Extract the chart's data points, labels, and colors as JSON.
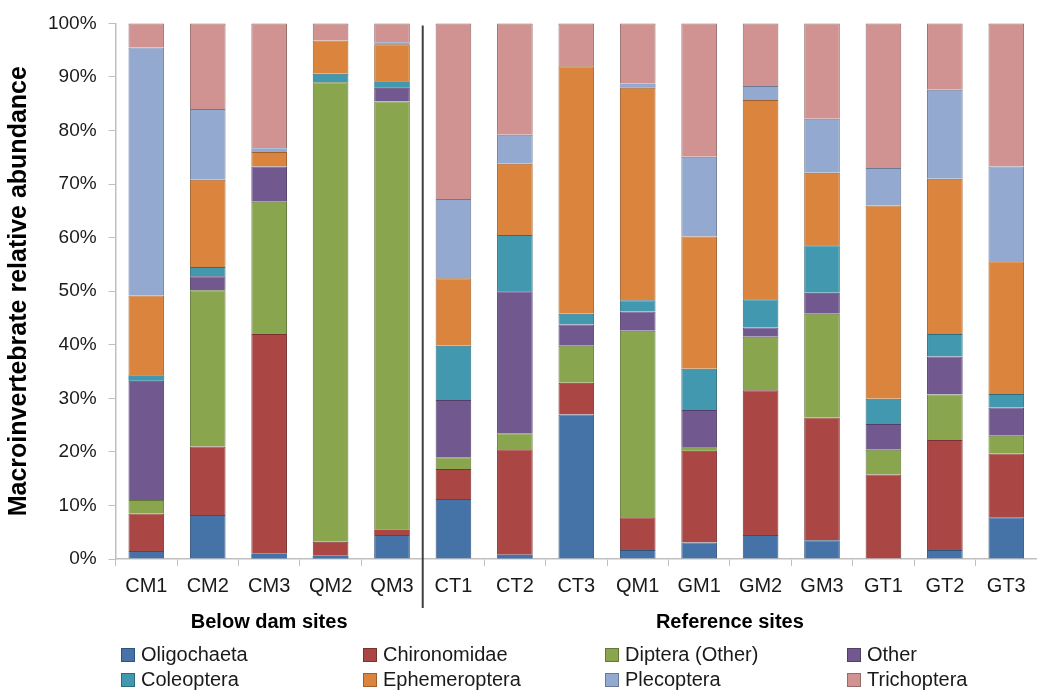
{
  "chart_data": {
    "type": "bar",
    "stacked": true,
    "ylabel": "Macroinvertebrate relative abundance",
    "categories": [
      "CM1",
      "CM2",
      "CM3",
      "QM2",
      "QM3",
      "CT1",
      "CT2",
      "CT3",
      "QM1",
      "GM1",
      "GM2",
      "GM3",
      "GT1",
      "GT2",
      "GT3"
    ],
    "ylim": [
      0,
      100
    ],
    "yticks": [
      {
        "value": 0,
        "label": "0%"
      },
      {
        "value": 10,
        "label": "10%"
      },
      {
        "value": 20,
        "label": "20%"
      },
      {
        "value": 30,
        "label": "30%"
      },
      {
        "value": 40,
        "label": "40%"
      },
      {
        "value": 50,
        "label": "50%"
      },
      {
        "value": 60,
        "label": "60%"
      },
      {
        "value": 70,
        "label": "70%"
      },
      {
        "value": 80,
        "label": "80%"
      },
      {
        "value": 90,
        "label": "90%"
      },
      {
        "value": 100,
        "label": "100%"
      }
    ],
    "grid": false,
    "legend": "bottom",
    "annotations": [
      "Below dam sites",
      "Reference sites"
    ],
    "series": [
      {
        "name": "Oligochaeta",
        "color": "#4572a7",
        "values": [
          1.5,
          8.2,
          1,
          0.6,
          4.5,
          11.2,
          0.8,
          27,
          1.7,
          3.1,
          4.5,
          3.5,
          0,
          1.7,
          7.8
        ]
      },
      {
        "name": "Chironomidae",
        "color": "#aa4643",
        "values": [
          7,
          12.8,
          41,
          2.6,
          1,
          5.6,
          19.7,
          5.9,
          6.1,
          17.1,
          27,
          22.9,
          15.8,
          20.5,
          11.9
        ]
      },
      {
        "name": "Diptera (Other)",
        "color": "#89a54e",
        "values": [
          2.5,
          29.2,
          24.7,
          85.8,
          79.9,
          2.2,
          3,
          6.9,
          34.8,
          0.7,
          10,
          19.4,
          4.6,
          8.5,
          3.3
        ]
      },
      {
        "name": "Other",
        "color": "#71588f",
        "values": [
          22.3,
          2.6,
          6.6,
          0,
          2.6,
          10.7,
          26.5,
          4,
          3.6,
          6.9,
          1.7,
          3.9,
          4.8,
          7.1,
          5.3
        ]
      },
      {
        "name": "Coleoptera",
        "color": "#4198af",
        "values": [
          1,
          1.7,
          0,
          1.6,
          1.2,
          10.1,
          10.5,
          2,
          2.1,
          7.7,
          5.3,
          8.9,
          4.7,
          4.2,
          2.5
        ]
      },
      {
        "name": "Ephemeroptera",
        "color": "#db843d",
        "values": [
          14.9,
          16.3,
          2.7,
          6.2,
          6.9,
          12.6,
          13.3,
          46.2,
          39.7,
          24.7,
          37.2,
          13.5,
          36.1,
          29,
          24.8
        ]
      },
      {
        "name": "Plecoptera",
        "color": "#93a9cf",
        "values": [
          46.3,
          13.2,
          0.7,
          0,
          0.4,
          14.8,
          5.4,
          0,
          0.8,
          14.9,
          2.6,
          10.1,
          7,
          16.6,
          17.7
        ]
      },
      {
        "name": "Trichoptera",
        "color": "#d19392",
        "values": [
          4.5,
          16,
          23.3,
          3.2,
          3.5,
          32.8,
          20.8,
          8,
          11.2,
          24.9,
          11.7,
          17.8,
          27,
          12.4,
          26.7
        ]
      }
    ]
  }
}
